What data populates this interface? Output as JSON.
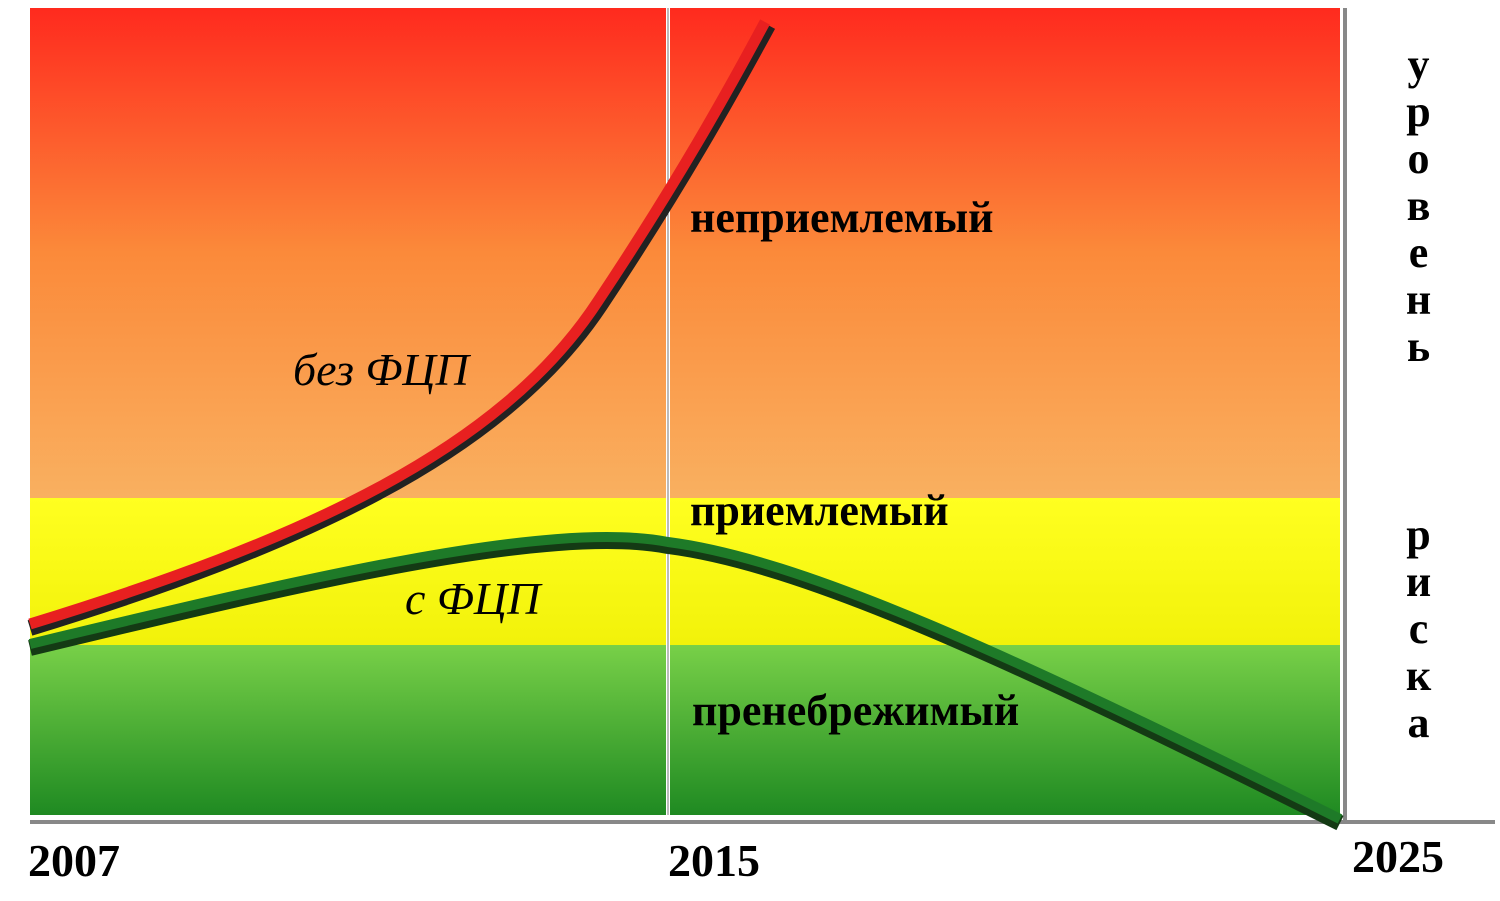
{
  "axis": {
    "labels": [
      "2007",
      "2015",
      "2025"
    ]
  },
  "zones": [
    "неприемлемый",
    "приемлемый",
    "пренебрежимый"
  ],
  "curves": [
    "без ФЦП",
    "с ФЦП"
  ],
  "side_label": [
    "уровень",
    "риска"
  ]
}
